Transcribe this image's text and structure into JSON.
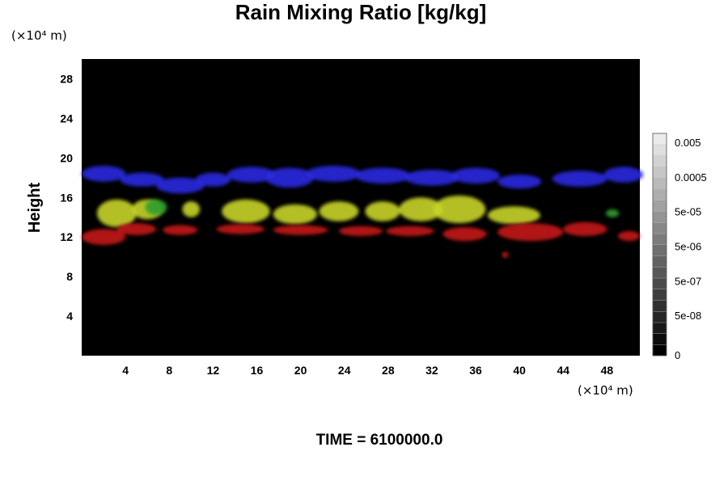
{
  "chart_data": {
    "type": "heatmap",
    "title": "Rain Mixing Ratio [kg/kg]",
    "ylabel": "Height",
    "x_unit": "(×10⁴ m)",
    "y_unit": "(×10⁴ m)",
    "x_ticks": [
      "4",
      "8",
      "12",
      "16",
      "20",
      "24",
      "28",
      "32",
      "36",
      "40",
      "44",
      "48"
    ],
    "y_ticks": [
      "4",
      "8",
      "12",
      "16",
      "20",
      "24",
      "28"
    ],
    "xlim": [
      0,
      51
    ],
    "ylim": [
      0,
      30
    ],
    "colorbar_labels": [
      "0",
      "5e-08",
      "5e-07",
      "5e-06",
      "5e-05",
      "0.0005",
      "0.005"
    ],
    "background_color": "#000000",
    "series": [
      {
        "color": "#2a2ae0",
        "blobs": [
          {
            "x": 2,
            "y": 18.4,
            "rx": 2.0,
            "ry": 0.8
          },
          {
            "x": 5.5,
            "y": 17.8,
            "rx": 2.0,
            "ry": 0.7
          },
          {
            "x": 9,
            "y": 17.2,
            "rx": 2.2,
            "ry": 0.8
          },
          {
            "x": 12,
            "y": 17.8,
            "rx": 1.6,
            "ry": 0.7
          },
          {
            "x": 15.5,
            "y": 18.3,
            "rx": 2.2,
            "ry": 0.8
          },
          {
            "x": 19,
            "y": 18.0,
            "rx": 2.2,
            "ry": 1.0
          },
          {
            "x": 23,
            "y": 18.4,
            "rx": 2.5,
            "ry": 0.8
          },
          {
            "x": 27.5,
            "y": 18.2,
            "rx": 2.5,
            "ry": 0.8
          },
          {
            "x": 32,
            "y": 18.0,
            "rx": 2.5,
            "ry": 0.8
          },
          {
            "x": 36,
            "y": 18.2,
            "rx": 2.2,
            "ry": 0.8
          },
          {
            "x": 40,
            "y": 17.6,
            "rx": 2.0,
            "ry": 0.7
          },
          {
            "x": 45.5,
            "y": 17.9,
            "rx": 2.5,
            "ry": 0.8
          },
          {
            "x": 49.5,
            "y": 18.3,
            "rx": 1.8,
            "ry": 0.8
          }
        ]
      },
      {
        "color": "#c8d428",
        "blobs": [
          {
            "x": 3.2,
            "y": 14.4,
            "rx": 1.8,
            "ry": 1.4
          },
          {
            "x": 6,
            "y": 14.8,
            "rx": 1.4,
            "ry": 1.0
          },
          {
            "x": 10,
            "y": 14.8,
            "rx": 0.8,
            "ry": 0.8
          },
          {
            "x": 15,
            "y": 14.6,
            "rx": 2.2,
            "ry": 1.2
          },
          {
            "x": 19.5,
            "y": 14.3,
            "rx": 2.0,
            "ry": 1.0
          },
          {
            "x": 23.5,
            "y": 14.6,
            "rx": 1.8,
            "ry": 1.0
          },
          {
            "x": 27.5,
            "y": 14.6,
            "rx": 1.6,
            "ry": 1.0
          },
          {
            "x": 31,
            "y": 14.8,
            "rx": 2.0,
            "ry": 1.2
          },
          {
            "x": 34.5,
            "y": 14.8,
            "rx": 2.4,
            "ry": 1.4
          },
          {
            "x": 39.5,
            "y": 14.2,
            "rx": 2.4,
            "ry": 0.9
          }
        ]
      },
      {
        "color": "#2ea02e",
        "blobs": [
          {
            "x": 6.8,
            "y": 15.0,
            "rx": 1.0,
            "ry": 0.8
          },
          {
            "x": 48.5,
            "y": 14.4,
            "rx": 0.6,
            "ry": 0.4
          }
        ]
      },
      {
        "color": "#c41a16",
        "blobs": [
          {
            "x": 2,
            "y": 12.0,
            "rx": 2.0,
            "ry": 0.8
          },
          {
            "x": 5,
            "y": 12.8,
            "rx": 1.8,
            "ry": 0.6
          },
          {
            "x": 9,
            "y": 12.7,
            "rx": 1.6,
            "ry": 0.5
          },
          {
            "x": 14.5,
            "y": 12.8,
            "rx": 2.2,
            "ry": 0.5
          },
          {
            "x": 20,
            "y": 12.7,
            "rx": 2.5,
            "ry": 0.5
          },
          {
            "x": 25.5,
            "y": 12.6,
            "rx": 2.0,
            "ry": 0.5
          },
          {
            "x": 30,
            "y": 12.6,
            "rx": 2.2,
            "ry": 0.5
          },
          {
            "x": 35,
            "y": 12.3,
            "rx": 2.0,
            "ry": 0.7
          },
          {
            "x": 41,
            "y": 12.5,
            "rx": 3.0,
            "ry": 0.9
          },
          {
            "x": 46,
            "y": 12.8,
            "rx": 2.0,
            "ry": 0.7
          },
          {
            "x": 50,
            "y": 12.1,
            "rx": 1.0,
            "ry": 0.5
          },
          {
            "x": 38.7,
            "y": 10.2,
            "rx": 0.3,
            "ry": 0.3
          }
        ]
      }
    ]
  },
  "footer": {
    "time_label": "TIME = 6100000.0"
  }
}
